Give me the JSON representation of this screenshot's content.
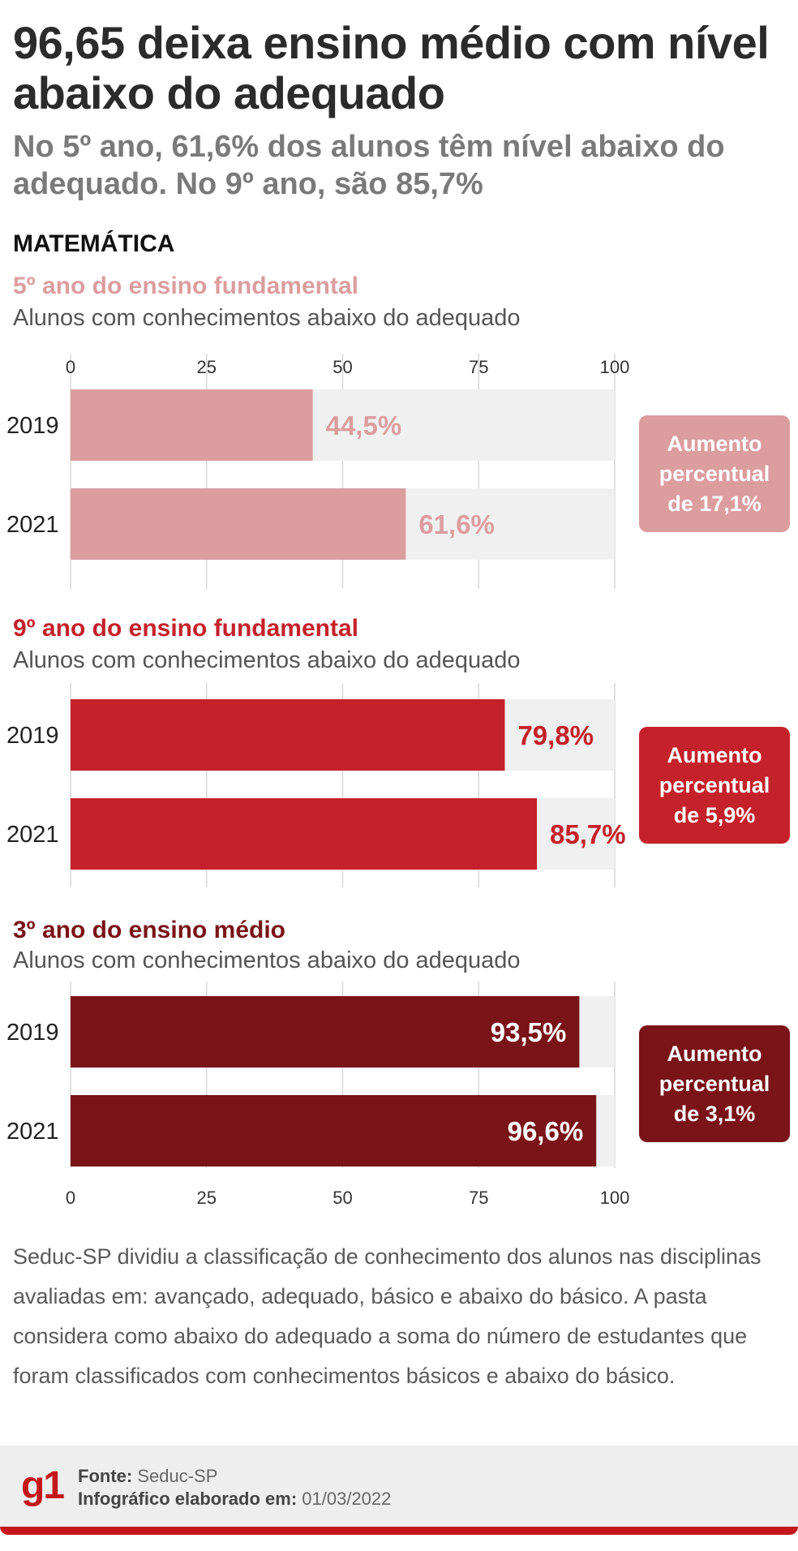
{
  "header": {
    "title": "96,65 deixa ensino médio com nível abaixo do adequado",
    "subtitle": "No 5º ano, 61,6% dos alunos têm nível abaixo do adequado. No 9º ano, são 85,7%"
  },
  "subject": "MATEMÁTICA",
  "colors": {
    "track": "#f0f0f0",
    "grid": "#d9d9d9",
    "panel1": "#dc9d9f",
    "panel2": "#c5212a",
    "panel3": "#7a1419"
  },
  "panels": [
    {
      "title": "5º ano do ensino fundamental",
      "subtitle": "Alunos com conhecimentos abaixo do adequado",
      "callout": "Aumento percentual de 17,1%"
    },
    {
      "title": "9º ano do ensino fundamental",
      "subtitle": "Alunos com conhecimentos abaixo do adequado",
      "callout": "Aumento percentual de 5,9%"
    },
    {
      "title": "3º ano do ensino médio",
      "subtitle": "Alunos com conhecimentos abaixo do adequado",
      "callout": "Aumento percentual de 3,1%"
    }
  ],
  "chart_data": [
    {
      "type": "bar",
      "orientation": "horizontal",
      "title": "5º ano do ensino fundamental",
      "categories": [
        "2019",
        "2021"
      ],
      "values": [
        44.5,
        61.6
      ],
      "labels": [
        "44,5%",
        "61,6%"
      ],
      "xlim": [
        0,
        100
      ],
      "ticks": [
        0,
        25,
        50,
        75,
        100
      ],
      "tick_position": "top"
    },
    {
      "type": "bar",
      "orientation": "horizontal",
      "title": "9º ano do ensino fundamental",
      "categories": [
        "2019",
        "2021"
      ],
      "values": [
        79.8,
        85.7
      ],
      "labels": [
        "79,8%",
        "85,7%"
      ],
      "xlim": [
        0,
        100
      ],
      "ticks": [],
      "tick_position": "none"
    },
    {
      "type": "bar",
      "orientation": "horizontal",
      "title": "3º ano do ensino médio",
      "categories": [
        "2019",
        "2021"
      ],
      "values": [
        93.5,
        96.6
      ],
      "labels": [
        "93,5%",
        "96,6%"
      ],
      "xlim": [
        0,
        100
      ],
      "ticks": [
        0,
        25,
        50,
        75,
        100
      ],
      "tick_position": "bottom"
    }
  ],
  "note": "Seduc-SP dividiu a classificação de conhecimento dos alunos nas disciplinas avaliadas em: avançado, adequado, básico e abaixo do básico. A pasta considera como abaixo do adequado a soma do número de estudantes que foram classificados com conhecimentos básicos e abaixo do básico.",
  "footer": {
    "logo": "g1",
    "source_label": "Fonte:",
    "source_value": "Seduc-SP",
    "date_label": "Infográfico elaborado em:",
    "date_value": "01/03/2022"
  }
}
